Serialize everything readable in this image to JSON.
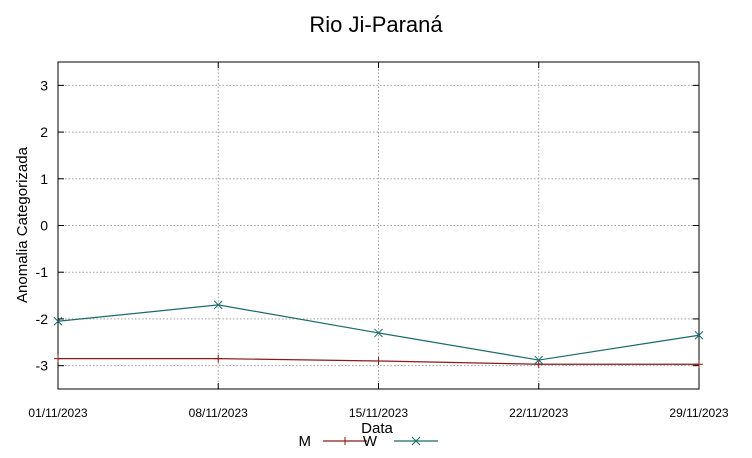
{
  "chart_data": {
    "type": "line",
    "title": "Rio Ji-Paraná",
    "xlabel": "Data",
    "ylabel": "Anomalia Categorizada",
    "x": [
      "01/11/2023",
      "08/11/2023",
      "15/11/2023",
      "22/11/2023",
      "29/11/2023"
    ],
    "x_days": [
      1,
      8,
      15,
      22,
      29
    ],
    "ylim": [
      -3.5,
      3.5
    ],
    "yticks": [
      3,
      2,
      1,
      0,
      -1,
      -2,
      -3
    ],
    "grid": true,
    "legend_position": "bottom",
    "series": [
      {
        "name": "M",
        "color": "#8b1a1a",
        "marker": "plus",
        "values": [
          -2.85,
          -2.85,
          -2.9,
          -2.97,
          -2.97
        ]
      },
      {
        "name": "W",
        "color": "#1a6b6b",
        "marker": "cross",
        "values": [
          -2.05,
          -1.7,
          -2.3,
          -2.88,
          -2.35
        ]
      }
    ]
  }
}
